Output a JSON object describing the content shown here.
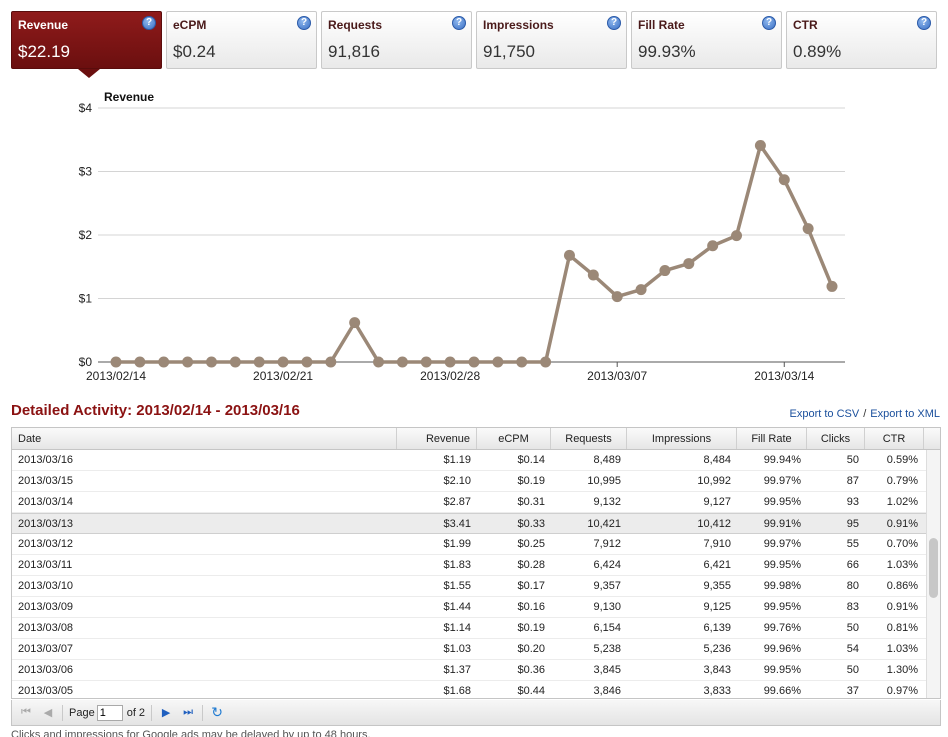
{
  "tabs": [
    {
      "label": "Revenue",
      "value": "$22.19",
      "active": true
    },
    {
      "label": "eCPM",
      "value": "$0.24",
      "active": false
    },
    {
      "label": "Requests",
      "value": "91,816",
      "active": false
    },
    {
      "label": "Impressions",
      "value": "91,750",
      "active": false
    },
    {
      "label": "Fill Rate",
      "value": "99.93%",
      "active": false
    },
    {
      "label": "CTR",
      "value": "0.89%",
      "active": false
    }
  ],
  "help_glyph": "?",
  "chart_data": {
    "type": "line",
    "title": "Revenue",
    "ylim": [
      0,
      4
    ],
    "y_ticks": [
      "$0",
      "$1",
      "$2",
      "$3",
      "$4"
    ],
    "x_tick_labels": [
      "2013/02/14",
      "2013/02/21",
      "2013/02/28",
      "2013/03/07",
      "2013/03/14"
    ],
    "x": [
      "2013/02/14",
      "2013/02/15",
      "2013/02/16",
      "2013/02/17",
      "2013/02/18",
      "2013/02/19",
      "2013/02/20",
      "2013/02/21",
      "2013/02/22",
      "2013/02/23",
      "2013/02/24",
      "2013/02/25",
      "2013/02/26",
      "2013/02/27",
      "2013/02/28",
      "2013/03/01",
      "2013/03/02",
      "2013/03/03",
      "2013/03/04",
      "2013/03/05",
      "2013/03/06",
      "2013/03/07",
      "2013/03/08",
      "2013/03/09",
      "2013/03/10",
      "2013/03/11",
      "2013/03/12",
      "2013/03/13",
      "2013/03/14",
      "2013/03/15",
      "2013/03/16"
    ],
    "values": [
      0,
      0,
      0,
      0,
      0,
      0,
      0,
      0,
      0,
      0,
      0.62,
      0,
      0,
      0,
      0,
      0,
      0,
      0,
      0,
      1.68,
      1.37,
      1.03,
      1.14,
      1.44,
      1.55,
      1.83,
      1.99,
      3.41,
      2.87,
      2.1,
      1.19
    ],
    "color": "#9b8877",
    "grid": true
  },
  "detail": {
    "title": "Detailed Activity: 2013/02/14 - 2013/03/16",
    "export_csv": "Export to CSV",
    "export_sep": "/",
    "export_xml": "Export to XML"
  },
  "table": {
    "columns": [
      "Date",
      "Revenue",
      "eCPM",
      "Requests",
      "Impressions",
      "Fill Rate",
      "Clicks",
      "CTR"
    ],
    "rows": [
      [
        "2013/03/16",
        "$1.19",
        "$0.14",
        "8,489",
        "8,484",
        "99.94%",
        "50",
        "0.59%"
      ],
      [
        "2013/03/15",
        "$2.10",
        "$0.19",
        "10,995",
        "10,992",
        "99.97%",
        "87",
        "0.79%"
      ],
      [
        "2013/03/14",
        "$2.87",
        "$0.31",
        "9,132",
        "9,127",
        "99.95%",
        "93",
        "1.02%"
      ],
      [
        "2013/03/13",
        "$3.41",
        "$0.33",
        "10,421",
        "10,412",
        "99.91%",
        "95",
        "0.91%"
      ],
      [
        "2013/03/12",
        "$1.99",
        "$0.25",
        "7,912",
        "7,910",
        "99.97%",
        "55",
        "0.70%"
      ],
      [
        "2013/03/11",
        "$1.83",
        "$0.28",
        "6,424",
        "6,421",
        "99.95%",
        "66",
        "1.03%"
      ],
      [
        "2013/03/10",
        "$1.55",
        "$0.17",
        "9,357",
        "9,355",
        "99.98%",
        "80",
        "0.86%"
      ],
      [
        "2013/03/09",
        "$1.44",
        "$0.16",
        "9,130",
        "9,125",
        "99.95%",
        "83",
        "0.91%"
      ],
      [
        "2013/03/08",
        "$1.14",
        "$0.19",
        "6,154",
        "6,139",
        "99.76%",
        "50",
        "0.81%"
      ],
      [
        "2013/03/07",
        "$1.03",
        "$0.20",
        "5,238",
        "5,236",
        "99.96%",
        "54",
        "1.03%"
      ],
      [
        "2013/03/06",
        "$1.37",
        "$0.36",
        "3,845",
        "3,843",
        "99.95%",
        "50",
        "1.30%"
      ],
      [
        "2013/03/05",
        "$1.68",
        "$0.44",
        "3,846",
        "3,833",
        "99.66%",
        "37",
        "0.97%"
      ]
    ],
    "selected_row": 3
  },
  "pager": {
    "page_label": "Page",
    "page_value": "1",
    "of_label": "of 2",
    "first_icon": "first-page-icon",
    "prev_icon": "prev-page-icon",
    "next_icon": "next-page-icon",
    "last_icon": "last-page-icon",
    "refresh_icon": "refresh-icon"
  },
  "footnote": "Clicks and impressions for Google ads may be delayed by up to 48 hours."
}
